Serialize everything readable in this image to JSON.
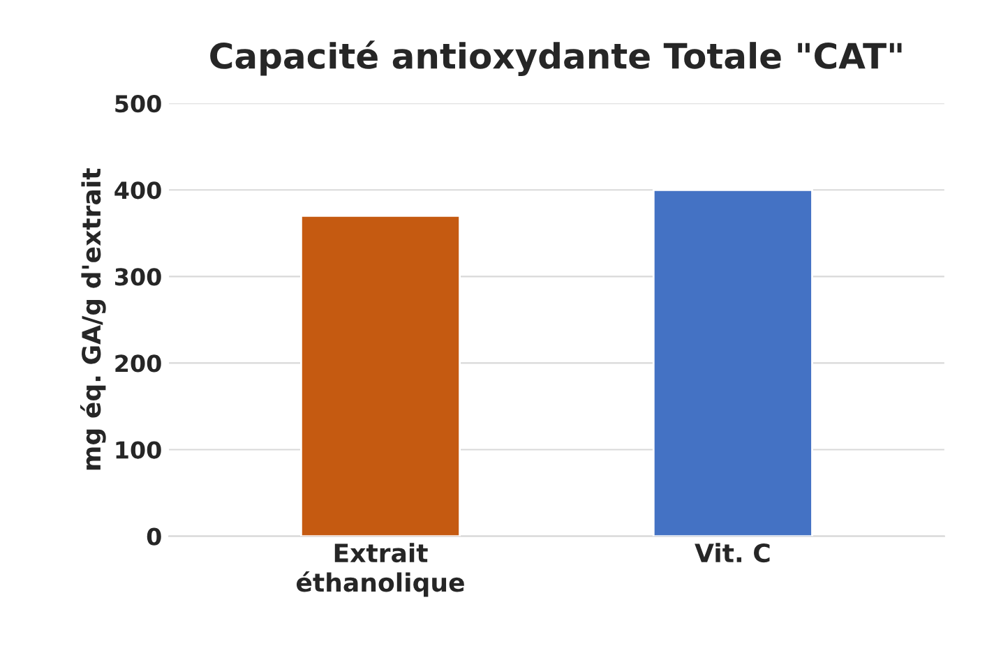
{
  "chart_data": {
    "type": "bar",
    "title": "Capacité antioxydante Totale \"CAT\"",
    "ylabel": "mg éq. GA/g d'extrait",
    "categories": [
      "Extrait\néthanolique",
      "Vit. C"
    ],
    "values": [
      370,
      400
    ],
    "colors": [
      "#c55a11",
      "#4472c4"
    ],
    "ylim": [
      0,
      500
    ],
    "yticks": [
      0,
      100,
      200,
      300,
      400,
      500
    ],
    "grid": "y"
  }
}
